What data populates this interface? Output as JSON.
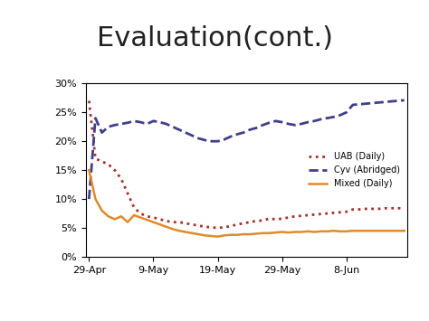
{
  "chart_data": {
    "type": "line",
    "title": "Evaluation(cont.)",
    "categories": [
      "29-Apr",
      null,
      null,
      null,
      null,
      null,
      null,
      null,
      null,
      null,
      "9-May",
      null,
      null,
      null,
      null,
      null,
      null,
      null,
      null,
      null,
      "19-May",
      null,
      null,
      null,
      null,
      null,
      null,
      null,
      null,
      null,
      "29-May",
      null,
      null,
      null,
      null,
      null,
      null,
      null,
      null,
      null,
      "8-Jun",
      null,
      null,
      null,
      null,
      null,
      null,
      null,
      null,
      null
    ],
    "series": [
      {
        "name": "UAB (Daily)",
        "color": "#a8302c",
        "line_style": "dotted",
        "values": [
          27,
          17,
          16.5,
          16,
          15,
          13.5,
          11,
          8.5,
          7.5,
          7,
          6.8,
          6.5,
          6.2,
          6,
          6,
          5.8,
          5.6,
          5.4,
          5.2,
          5.1,
          5,
          5.1,
          5.3,
          5.6,
          5.8,
          6,
          6.2,
          6.3,
          6.6,
          6.5,
          6.6,
          6.8,
          7,
          7.1,
          7.2,
          7.3,
          7.4,
          7.5,
          7.6,
          7.7,
          7.8,
          8.2,
          8.2,
          8.3,
          8.3,
          8.3,
          8.4,
          8.4,
          8.4,
          8.4
        ]
      },
      {
        "name": "Cyv (Abridged)",
        "color": "#3f3f8c",
        "line_style": "dashed",
        "values": [
          10,
          24,
          21.5,
          22.5,
          22.8,
          23,
          23.2,
          23.5,
          23.3,
          23,
          23.5,
          23.3,
          23,
          22.5,
          22,
          21.5,
          21,
          20.5,
          20.2,
          20,
          20,
          20.3,
          20.8,
          21.2,
          21.5,
          22,
          22.3,
          22.8,
          23.2,
          23.5,
          23.3,
          23,
          22.8,
          23,
          23.3,
          23.5,
          23.8,
          24,
          24.2,
          24.5,
          25,
          26.3,
          26.4,
          26.5,
          26.6,
          26.7,
          26.8,
          26.9,
          27,
          27.1
        ]
      },
      {
        "name": "Mixed (Daily)",
        "color": "#e08a2a",
        "line_style": "solid",
        "values": [
          15,
          10,
          8,
          7,
          6.5,
          7,
          6,
          7.2,
          6.8,
          6.4,
          6,
          5.6,
          5.2,
          4.8,
          4.5,
          4.3,
          4.1,
          3.9,
          3.7,
          3.6,
          3.5,
          3.7,
          3.8,
          3.8,
          3.9,
          3.9,
          4,
          4.1,
          4.1,
          4.2,
          4.3,
          4.2,
          4.3,
          4.3,
          4.4,
          4.3,
          4.4,
          4.4,
          4.5,
          4.4,
          4.4,
          4.5,
          4.5,
          4.5,
          4.5,
          4.5,
          4.5,
          4.5,
          4.5,
          4.5
        ]
      }
    ],
    "ylim": [
      0,
      30
    ],
    "yticks": [
      {
        "value": 0,
        "label": "0%"
      },
      {
        "value": 5,
        "label": "5%"
      },
      {
        "value": 10,
        "label": "10%"
      },
      {
        "value": 15,
        "label": "15%"
      },
      {
        "value": 20,
        "label": "20%"
      },
      {
        "value": 25,
        "label": "25%"
      },
      {
        "value": 30,
        "label": "30%"
      }
    ],
    "grid": false,
    "legend": "center right"
  }
}
